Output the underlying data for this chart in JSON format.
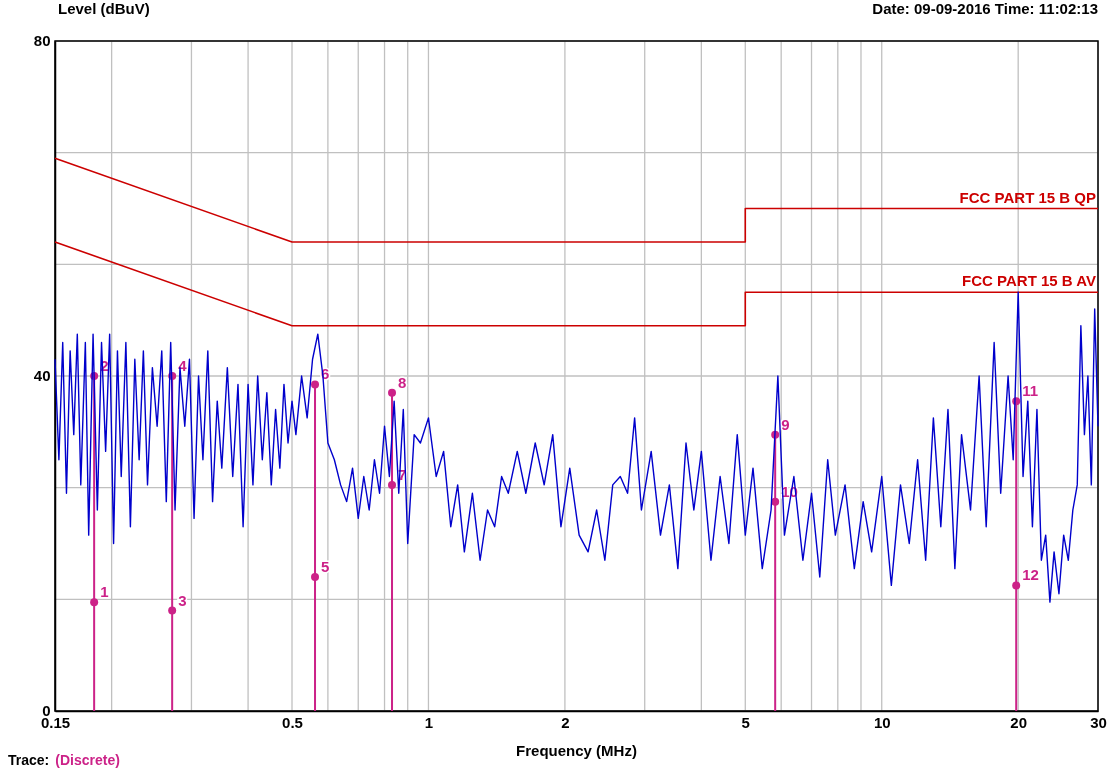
{
  "chart_data": {
    "type": "line",
    "ylabel": "Level (dBuV)",
    "xlabel": "Frequency (MHz)",
    "log": "x",
    "grid": true,
    "legend": false,
    "xlim": [
      0.15,
      30
    ],
    "ylim": [
      0,
      80
    ],
    "xticks": [
      0.15,
      {
        "value": 0.2,
        "label": null
      },
      {
        "value": 0.3,
        "label": null
      },
      {
        "value": 0.4,
        "label": null
      },
      0.5,
      {
        "value": 0.6,
        "label": null
      },
      {
        "value": 0.7,
        "label": null
      },
      {
        "value": 0.8,
        "label": null
      },
      {
        "value": 0.9,
        "label": null
      },
      1,
      2,
      {
        "value": 3,
        "label": null
      },
      {
        "value": 4,
        "label": null
      },
      5,
      {
        "value": 6,
        "label": null
      },
      {
        "value": 7,
        "label": null
      },
      {
        "value": 8,
        "label": null
      },
      {
        "value": 9,
        "label": null
      },
      10,
      20,
      30
    ],
    "yticks": [
      0,
      {
        "value": 13.33,
        "label": null
      },
      {
        "value": 26.67,
        "label": null
      },
      40,
      {
        "value": 53.33,
        "label": null
      },
      {
        "value": 66.67,
        "label": null
      },
      80
    ],
    "annotations": [
      "Date: 09-09-2016  Time: 11:02:13",
      "Trace:",
      "(Discrete)",
      {
        "text": "1",
        "x": 0.183,
        "y": 13
      },
      {
        "text": "2",
        "x": 0.183,
        "y": 40
      },
      {
        "text": "3",
        "x": 0.272,
        "y": 12
      },
      {
        "text": "4",
        "x": 0.272,
        "y": 40
      },
      {
        "text": "5",
        "x": 0.562,
        "y": 16
      },
      {
        "text": "6",
        "x": 0.562,
        "y": 39
      },
      {
        "text": "7",
        "x": 0.831,
        "y": 27
      },
      {
        "text": "8",
        "x": 0.831,
        "y": 38
      },
      {
        "text": "9",
        "x": 5.82,
        "y": 33
      },
      {
        "text": "10",
        "x": 5.82,
        "y": 25
      },
      {
        "text": "11",
        "x": 19.8,
        "y": 37
      },
      {
        "text": "12",
        "x": 19.8,
        "y": 15
      }
    ],
    "series": [
      {
        "color": "#0000cc",
        "x": [
          0.15,
          0.153,
          0.156,
          0.159,
          0.162,
          0.165,
          0.168,
          0.171,
          0.175,
          0.178,
          0.182,
          0.186,
          0.19,
          0.194,
          0.198,
          0.202,
          0.206,
          0.21,
          0.215,
          0.22,
          0.225,
          0.23,
          0.235,
          0.24,
          0.246,
          0.252,
          0.258,
          0.264,
          0.27,
          0.276,
          0.283,
          0.29,
          0.297,
          0.304,
          0.311,
          0.318,
          0.326,
          0.334,
          0.342,
          0.35,
          0.36,
          0.37,
          0.38,
          0.39,
          0.4,
          0.41,
          0.42,
          0.43,
          0.44,
          0.45,
          0.46,
          0.47,
          0.48,
          0.49,
          0.5,
          0.51,
          0.525,
          0.54,
          0.555,
          0.57,
          0.585,
          0.6,
          0.62,
          0.64,
          0.66,
          0.68,
          0.7,
          0.72,
          0.74,
          0.76,
          0.78,
          0.8,
          0.82,
          0.84,
          0.86,
          0.88,
          0.9,
          0.93,
          0.96,
          1.0,
          1.04,
          1.08,
          1.12,
          1.16,
          1.2,
          1.25,
          1.3,
          1.35,
          1.4,
          1.45,
          1.5,
          1.57,
          1.64,
          1.72,
          1.8,
          1.88,
          1.96,
          2.05,
          2.15,
          2.25,
          2.35,
          2.45,
          2.55,
          2.65,
          2.75,
          2.85,
          2.95,
          3.1,
          3.25,
          3.4,
          3.55,
          3.7,
          3.85,
          4.0,
          4.2,
          4.4,
          4.6,
          4.8,
          5.0,
          5.2,
          5.45,
          5.7,
          5.9,
          6.1,
          6.4,
          6.7,
          7.0,
          7.3,
          7.6,
          7.9,
          8.3,
          8.7,
          9.1,
          9.5,
          10,
          10.5,
          11,
          11.5,
          12,
          12.5,
          13,
          13.5,
          14,
          14.5,
          15,
          15.7,
          16.4,
          17,
          17.7,
          18.3,
          19,
          19.5,
          20,
          20.5,
          21,
          21.5,
          22,
          22.5,
          23,
          23.5,
          24,
          24.6,
          25.2,
          25.8,
          26.4,
          27,
          27.5,
          28,
          28.5,
          29,
          29.5,
          30
        ],
        "values": [
          42,
          30,
          44,
          26,
          43,
          33,
          45,
          27,
          44,
          21,
          45,
          24,
          44,
          31,
          45,
          20,
          43,
          28,
          44,
          22,
          42,
          30,
          43,
          27,
          41,
          34,
          43,
          25,
          44,
          24,
          41,
          34,
          42,
          23,
          40,
          30,
          43,
          25,
          37,
          29,
          41,
          28,
          39,
          22,
          39,
          27,
          40,
          30,
          38,
          27,
          36,
          29,
          39,
          32,
          37,
          33,
          40,
          35,
          42,
          45,
          40,
          32,
          30,
          27,
          25,
          29,
          23,
          28,
          24,
          30,
          26,
          34,
          28,
          37,
          26,
          36,
          20,
          33,
          32,
          35,
          28,
          31,
          22,
          27,
          19,
          26,
          18,
          24,
          22,
          28,
          26,
          31,
          26,
          32,
          27,
          33,
          22,
          29,
          21,
          19,
          24,
          18,
          27,
          28,
          26,
          35,
          24,
          31,
          21,
          27,
          17,
          32,
          24,
          31,
          18,
          28,
          20,
          33,
          21,
          29,
          17,
          24,
          40,
          21,
          28,
          18,
          26,
          16,
          30,
          21,
          27,
          17,
          25,
          19,
          28,
          15,
          27,
          20,
          30,
          18,
          35,
          22,
          36,
          17,
          33,
          24,
          40,
          22,
          44,
          26,
          40,
          30,
          50,
          28,
          37,
          22,
          36,
          18,
          21,
          13,
          19,
          14,
          21,
          18,
          24,
          27,
          46,
          33,
          40,
          27,
          48,
          34
        ]
      },
      {
        "type": "line",
        "name": "FCC PART 15 B QP",
        "color": "#cc0000",
        "x": [
          0.15,
          0.5,
          5,
          5,
          30
        ],
        "values": [
          66,
          56,
          56,
          60,
          60
        ]
      },
      {
        "type": "line",
        "name": "FCC PART 15 B AV",
        "color": "#cc0000",
        "x": [
          0.15,
          0.5,
          5,
          5,
          30
        ],
        "values": [
          56,
          46,
          46,
          50,
          50
        ]
      },
      {
        "type": "bar",
        "color": "#cc2288",
        "x": [
          0.183,
          0.272,
          0.562,
          0.831,
          5.82,
          19.8
        ],
        "values": [
          40,
          40,
          39,
          38,
          33,
          37
        ]
      },
      {
        "type": "scatter",
        "marker": "circle",
        "color": "#cc2288",
        "x": [
          0.183,
          0.183,
          0.272,
          0.272,
          0.562,
          0.562,
          0.831,
          0.831,
          5.82,
          5.82,
          19.8,
          19.8
        ],
        "values": [
          13,
          40,
          12,
          40,
          16,
          39,
          27,
          38,
          33,
          25,
          37,
          15
        ]
      }
    ]
  }
}
